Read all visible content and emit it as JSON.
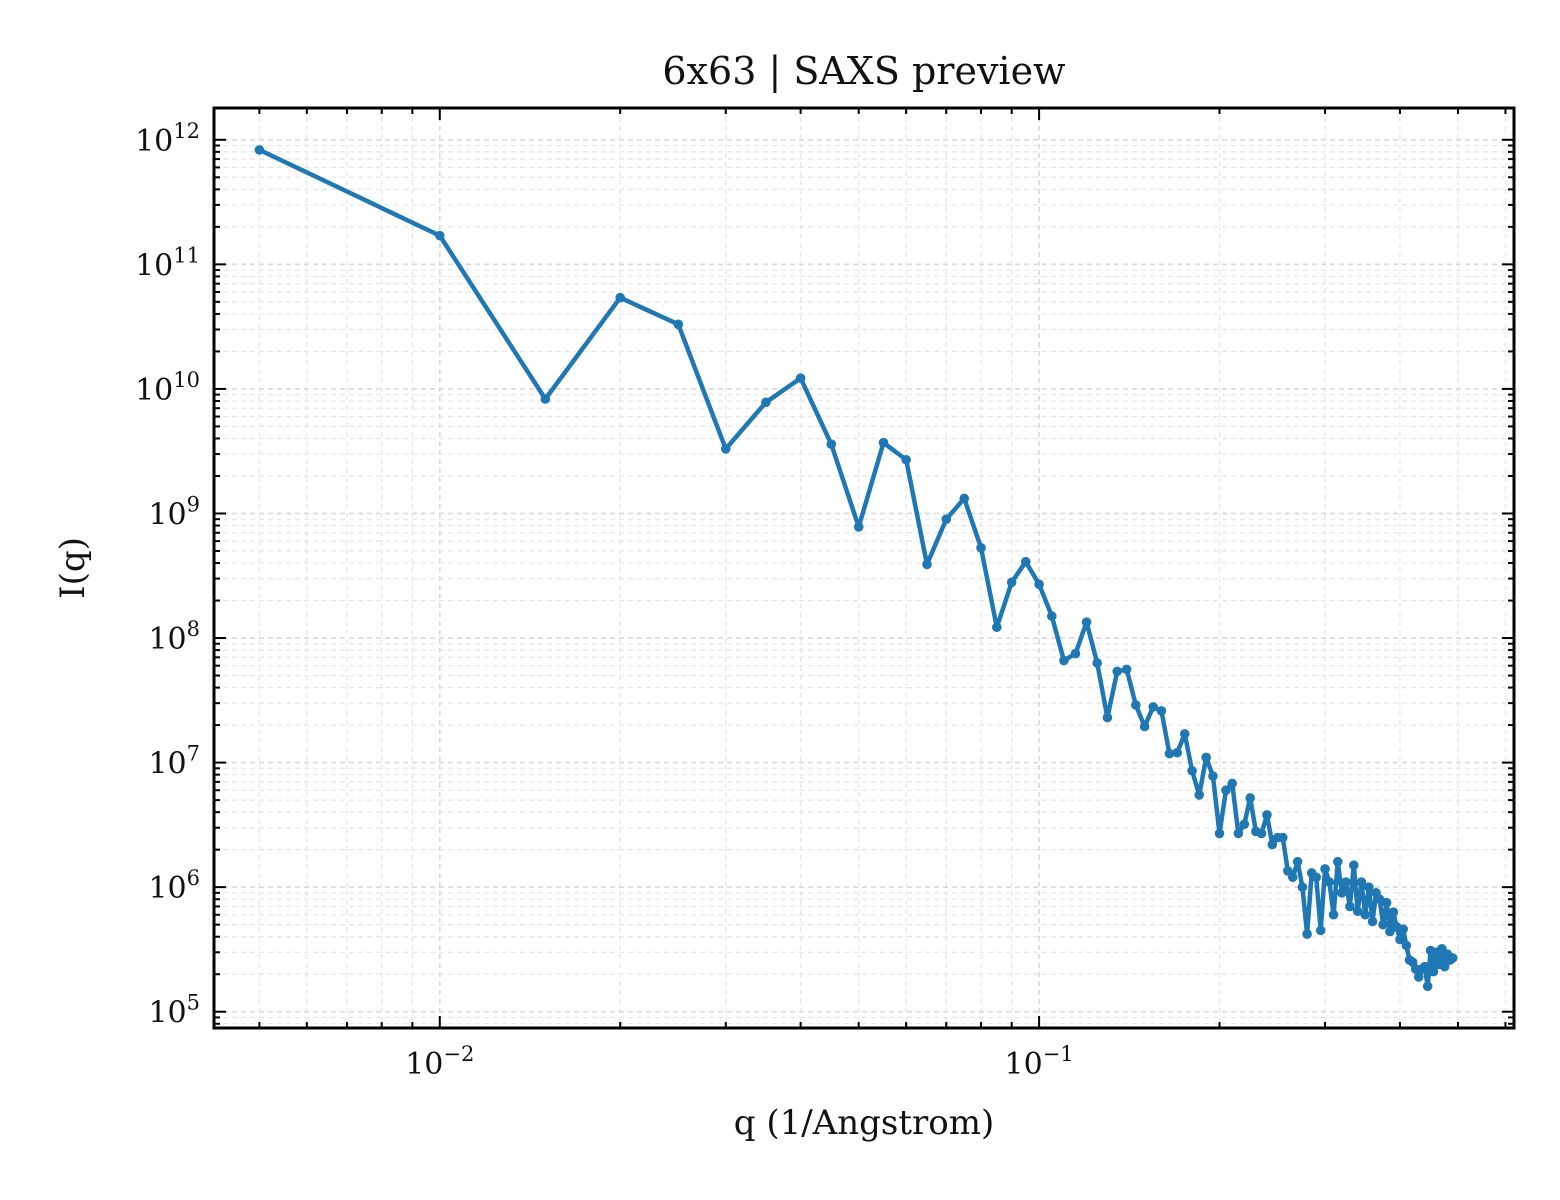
{
  "chart_data": {
    "type": "line",
    "title": "6x63 | SAXS preview",
    "xlabel": "q (1/Angstrom)",
    "ylabel": "I(q)",
    "xscale": "log",
    "yscale": "log",
    "xlim": [
      0.0042,
      0.62
    ],
    "ylim": [
      74000,
      1800000000000.0
    ],
    "grid": true,
    "legend": "none",
    "color": "#1f77b4",
    "x_ticks": [
      {
        "value": 0.01,
        "base": "10",
        "exp": "−2"
      },
      {
        "value": 0.1,
        "base": "10",
        "exp": "−1"
      }
    ],
    "y_ticks": [
      {
        "value": 100000.0,
        "base": "10",
        "exp": "5"
      },
      {
        "value": 1000000.0,
        "base": "10",
        "exp": "6"
      },
      {
        "value": 10000000.0,
        "base": "10",
        "exp": "7"
      },
      {
        "value": 100000000.0,
        "base": "10",
        "exp": "8"
      },
      {
        "value": 1000000000.0,
        "base": "10",
        "exp": "9"
      },
      {
        "value": 10000000000.0,
        "base": "10",
        "exp": "10"
      },
      {
        "value": 100000000000.0,
        "base": "10",
        "exp": "11"
      },
      {
        "value": 1000000000000.0,
        "base": "10",
        "exp": "12"
      }
    ],
    "series": [
      {
        "points": [
          [
            0.005,
            830000000000.0
          ],
          [
            0.01,
            170000000000.0
          ],
          [
            0.015,
            8300000000.0
          ],
          [
            0.02,
            54000000000.0
          ],
          [
            0.025,
            33000000000.0
          ],
          [
            0.03,
            3300000000.0
          ],
          [
            0.035,
            7800000000.0
          ],
          [
            0.04,
            12200000000.0
          ],
          [
            0.045,
            3600000000.0
          ],
          [
            0.05,
            780000000.0
          ],
          [
            0.055,
            3700000000.0
          ],
          [
            0.06,
            2700000000.0
          ],
          [
            0.065,
            390000000.0
          ],
          [
            0.07,
            900000000.0
          ],
          [
            0.075,
            1320000000.0
          ],
          [
            0.08,
            530000000.0
          ],
          [
            0.085,
            122000000.0
          ],
          [
            0.09,
            280000000.0
          ],
          [
            0.095,
            410000000.0
          ],
          [
            0.1,
            270000000.0
          ],
          [
            0.105,
            150000000.0
          ],
          [
            0.11,
            66000000.0
          ],
          [
            0.115,
            75000000.0
          ],
          [
            0.12,
            134000000.0
          ],
          [
            0.125,
            63000000.0
          ],
          [
            0.13,
            23000000.0
          ],
          [
            0.135,
            54000000.0
          ],
          [
            0.14,
            56000000.0
          ],
          [
            0.145,
            29000000.0
          ],
          [
            0.15,
            19500000.0
          ],
          [
            0.155,
            28000000.0
          ],
          [
            0.16,
            26000000.0
          ],
          [
            0.165,
            11800000.0
          ],
          [
            0.17,
            12000000.0
          ],
          [
            0.175,
            17000000.0
          ],
          [
            0.18,
            8600000.0
          ],
          [
            0.185,
            5500000.0
          ],
          [
            0.19,
            11000000.0
          ],
          [
            0.195,
            7800000.0
          ],
          [
            0.2,
            2700000.0
          ],
          [
            0.205,
            6000000.0
          ],
          [
            0.21,
            6800000.0
          ],
          [
            0.215,
            2700000.0
          ],
          [
            0.22,
            3200000.0
          ],
          [
            0.225,
            5200000.0
          ],
          [
            0.23,
            2800000.0
          ],
          [
            0.235,
            2700000.0
          ],
          [
            0.24,
            3800000.0
          ],
          [
            0.245,
            2200000.0
          ],
          [
            0.25,
            2500000.0
          ],
          [
            0.255,
            2500000.0
          ],
          [
            0.26,
            1350000.0
          ],
          [
            0.265,
            1200000.0
          ],
          [
            0.27,
            1600000.0
          ],
          [
            0.275,
            1000000.0
          ],
          [
            0.28,
            420000.0
          ],
          [
            0.285,
            1300000.0
          ],
          [
            0.29,
            1200000.0
          ],
          [
            0.295,
            450000.0
          ],
          [
            0.3,
            1400000.0
          ],
          [
            0.305,
            1100000.0
          ],
          [
            0.31,
            600000.0
          ],
          [
            0.315,
            1600000.0
          ],
          [
            0.32,
            900000.0
          ],
          [
            0.325,
            1100000.0
          ],
          [
            0.33,
            700000.0
          ],
          [
            0.335,
            1500000.0
          ],
          [
            0.34,
            640000.0
          ],
          [
            0.345,
            1100000.0
          ],
          [
            0.35,
            600000.0
          ],
          [
            0.355,
            1000000.0
          ],
          [
            0.36,
            530000.0
          ],
          [
            0.365,
            900000.0
          ],
          [
            0.37,
            800000.0
          ],
          [
            0.375,
            500000.0
          ],
          [
            0.38,
            750000.0
          ],
          [
            0.385,
            440000.0
          ],
          [
            0.39,
            630000.0
          ],
          [
            0.395,
            480000.0
          ],
          [
            0.4,
            380000.0
          ],
          [
            0.405,
            460000.0
          ],
          [
            0.41,
            340000.0
          ],
          [
            0.415,
            260000.0
          ],
          [
            0.42,
            250000.0
          ],
          [
            0.425,
            220000.0
          ],
          [
            0.43,
            190000.0
          ],
          [
            0.435,
            220000.0
          ],
          [
            0.44,
            230000.0
          ],
          [
            0.445,
            160000.0
          ],
          [
            0.45,
            310000.0
          ],
          [
            0.455,
            210000.0
          ],
          [
            0.46,
            300000.0
          ],
          [
            0.465,
            240000.0
          ],
          [
            0.47,
            320000.0
          ],
          [
            0.475,
            230000.0
          ],
          [
            0.48,
            290000.0
          ],
          [
            0.485,
            260000.0
          ],
          [
            0.49,
            270000.0
          ]
        ]
      }
    ]
  }
}
